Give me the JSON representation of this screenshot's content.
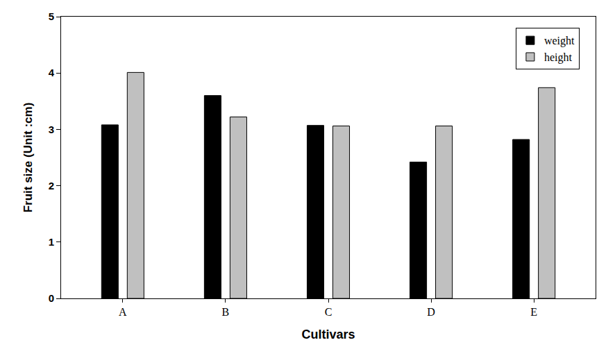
{
  "chart_data": {
    "type": "bar",
    "categories": [
      "A",
      "B",
      "C",
      "D",
      "E"
    ],
    "series": [
      {
        "name": "weight",
        "color": "#000000",
        "values": [
          3.08,
          3.6,
          3.07,
          2.42,
          2.82
        ]
      },
      {
        "name": "height",
        "color": "#c0c0c0",
        "values": [
          4.01,
          3.22,
          3.06,
          3.06,
          3.74
        ]
      }
    ],
    "x_label": "Cultivars",
    "y_label": "Fruit size (Unit :cm)",
    "ylim": [
      0,
      5
    ],
    "yticks": [
      0,
      1,
      2,
      3,
      4,
      5
    ],
    "grid": false,
    "legend": "top-right"
  }
}
